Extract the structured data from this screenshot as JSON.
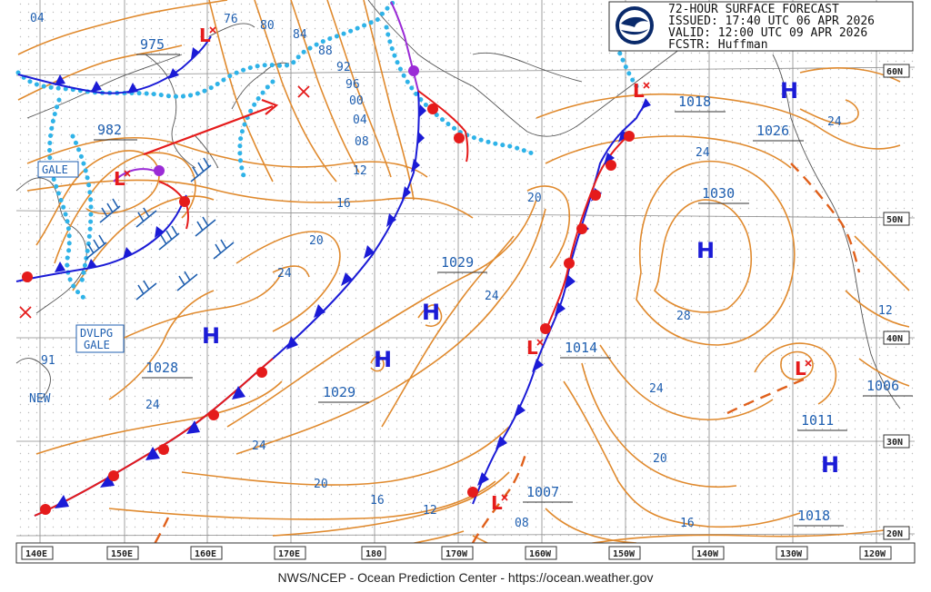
{
  "header": {
    "line1": "72-HOUR SURFACE FORECAST",
    "line2": "ISSUED: 17:40 UTC 06 APR 2026",
    "line3": "VALID:  12:00 UTC 09 APR 2026",
    "line4": "FCSTR:  Huffman",
    "logo_text": "NOAA"
  },
  "footer": "NWS/NCEP - Ocean Prediction Center - https://ocean.weather.gov",
  "lon_labels": [
    "140E",
    "150E",
    "160E",
    "170E",
    "180",
    "170W",
    "160W",
    "150W",
    "140W",
    "130W",
    "120W"
  ],
  "lat_labels": [
    "60N",
    "50N",
    "40N",
    "30N",
    "20N"
  ],
  "pressure_labels": [
    "975",
    "982",
    "1029",
    "1028",
    "1029",
    "1014",
    "1018",
    "1026",
    "1030",
    "1006",
    "1011",
    "1018",
    "1007"
  ],
  "isobar_labels": [
    "04",
    "76",
    "80",
    "84",
    "88",
    "92",
    "96",
    "00",
    "04",
    "08",
    "12",
    "16",
    "20",
    "24",
    "24",
    "20",
    "16",
    "12",
    "08",
    "20",
    "24",
    "28",
    "24",
    "20",
    "16",
    "12",
    "24",
    "91",
    "NEW"
  ],
  "warnings": [
    "GALE",
    "DVLPG",
    "GALE"
  ],
  "symbols": {
    "high": "H",
    "low": "L"
  },
  "colors": {
    "isobar": "#e08a2e",
    "cold_front": "#1b1bd6",
    "warm_front": "#e51b1b",
    "occluded": "#9b2bd6",
    "ice": "#2fb3e8",
    "label": "#1f5fb0"
  }
}
